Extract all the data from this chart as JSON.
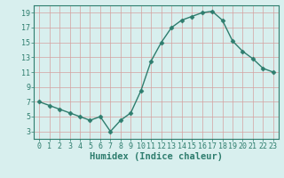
{
  "x": [
    0,
    1,
    2,
    3,
    4,
    5,
    6,
    7,
    8,
    9,
    10,
    11,
    12,
    13,
    14,
    15,
    16,
    17,
    18,
    19,
    20,
    21,
    22,
    23
  ],
  "y": [
    7,
    6.5,
    6,
    5.5,
    5,
    4.5,
    5,
    3,
    4.5,
    5.5,
    8.5,
    12.5,
    15,
    17,
    18,
    18.5,
    19,
    19.2,
    18,
    15.2,
    13.8,
    12.8,
    11.5,
    11
  ],
  "line_color": "#2e7d6e",
  "marker": "D",
  "marker_size": 2.5,
  "background_color": "#d8efee",
  "grid_color": "#d4a0a0",
  "xlabel": "Humidex (Indice chaleur)",
  "xlim": [
    -0.5,
    23.5
  ],
  "ylim": [
    2,
    20
  ],
  "yticks": [
    3,
    5,
    7,
    9,
    11,
    13,
    15,
    17,
    19
  ],
  "xticks": [
    0,
    1,
    2,
    3,
    4,
    5,
    6,
    7,
    8,
    9,
    10,
    11,
    12,
    13,
    14,
    15,
    16,
    17,
    18,
    19,
    20,
    21,
    22,
    23
  ],
  "tick_fontsize": 6,
  "xlabel_fontsize": 7.5
}
